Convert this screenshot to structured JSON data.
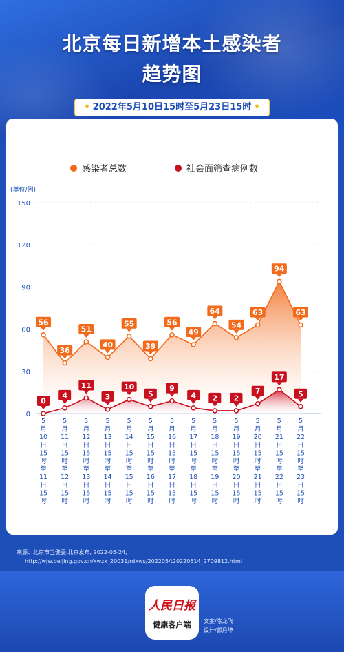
{
  "header": {
    "title_line1": "北京每日新增本土感染者",
    "title_line2": "趋势图",
    "date_range": "2022年5月10日15时至5月23日15时"
  },
  "chart_data": {
    "type": "line",
    "unit_label": "(单位/例)",
    "ylim": [
      0,
      150
    ],
    "yticks": [
      "0",
      "30",
      "60",
      "90",
      "120",
      "150"
    ],
    "grid": true,
    "legend_position": "top-center",
    "categories": [
      "5月10日15时至11日15时",
      "5月11日15时至12日15时",
      "5月12日15时至13日15时",
      "5月13日15时至14日15时",
      "5月14日15时至15日15时",
      "5月15日15时至16日15时",
      "5月16日15时至17日15时",
      "5月17日15时至18日15时",
      "5月18日15时至19日15时",
      "5月19日15时至20日15时",
      "5月20日15时至21日15时",
      "5月21日15时至22日15时",
      "5月22日15时至23日15时"
    ],
    "series": [
      {
        "name": "感染者总数",
        "color": "#f26a1b",
        "values": [
          56,
          36,
          51,
          40,
          55,
          39,
          56,
          49,
          64,
          54,
          63,
          94,
          63
        ]
      },
      {
        "name": "社会面筛查病例数",
        "color": "#c8101e",
        "values": [
          0,
          4,
          11,
          3,
          10,
          5,
          9,
          4,
          2,
          2,
          7,
          17,
          5
        ]
      }
    ]
  },
  "footer": {
    "source_line1": "来源：北京市卫健委,北京发布, 2022-05-24,",
    "source_line2": "http://wjw.beijing.gov.cn/xwzx_20031/rdxws/202205/t20220514_2709812.html",
    "logo_brand": "人民日报",
    "logo_sub": "健康客户端",
    "credit_text": "文案/陈龙飞",
    "credit_design": "设计/郭月坤"
  }
}
